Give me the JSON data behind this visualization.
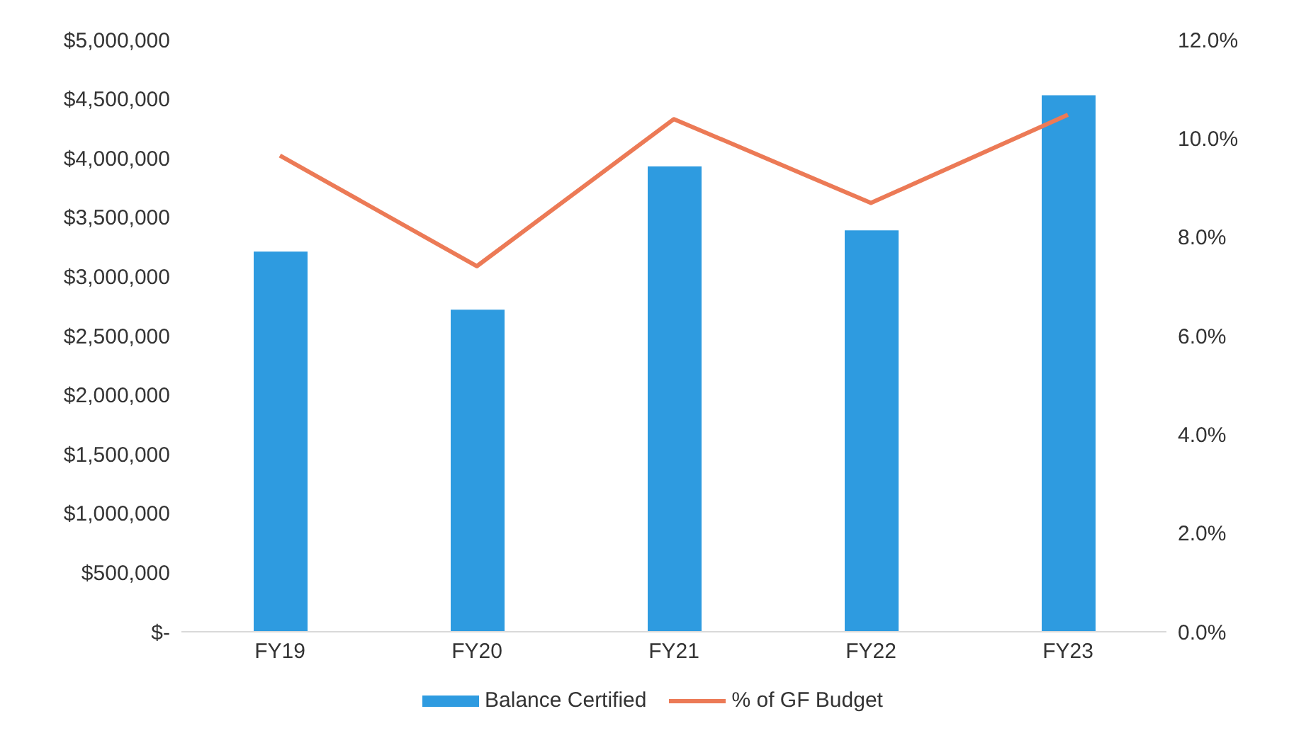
{
  "chart_data": {
    "type": "bar",
    "categories": [
      "FY19",
      "FY20",
      "FY21",
      "FY22",
      "FY23"
    ],
    "series": [
      {
        "name": "Balance Certified",
        "color": "#2e9be0",
        "values": [
          3210000,
          2720000,
          3930000,
          3390000,
          4530000
        ]
      },
      {
        "name": "% of GF Budget",
        "type": "line",
        "axis": "y2",
        "color": "#ec7a56",
        "values": [
          9.65,
          7.41,
          10.39,
          8.69,
          10.48
        ]
      }
    ],
    "ylim": [
      0,
      5000000
    ],
    "yticks": [
      {
        "value": 0,
        "label": "$-"
      },
      {
        "value": 500000,
        "label": "$500,000"
      },
      {
        "value": 1000000,
        "label": "$1,000,000"
      },
      {
        "value": 1500000,
        "label": "$1,500,000"
      },
      {
        "value": 2000000,
        "label": "$2,000,000"
      },
      {
        "value": 2500000,
        "label": "$2,500,000"
      },
      {
        "value": 3000000,
        "label": "$3,000,000"
      },
      {
        "value": 3500000,
        "label": "$3,500,000"
      },
      {
        "value": 4000000,
        "label": "$4,000,000"
      },
      {
        "value": 4500000,
        "label": "$4,500,000"
      },
      {
        "value": 5000000,
        "label": "$5,000,000"
      }
    ],
    "y2lim": [
      0,
      12
    ],
    "y2ticks": [
      {
        "value": 0,
        "label": "0.0%"
      },
      {
        "value": 2,
        "label": "2.0%"
      },
      {
        "value": 4,
        "label": "4.0%"
      },
      {
        "value": 6,
        "label": "6.0%"
      },
      {
        "value": 8,
        "label": "8.0%"
      },
      {
        "value": 10,
        "label": "10.0%"
      },
      {
        "value": 12,
        "label": "12.0%"
      }
    ],
    "legend": "bottom",
    "marker": "none",
    "line_style": "solid"
  }
}
